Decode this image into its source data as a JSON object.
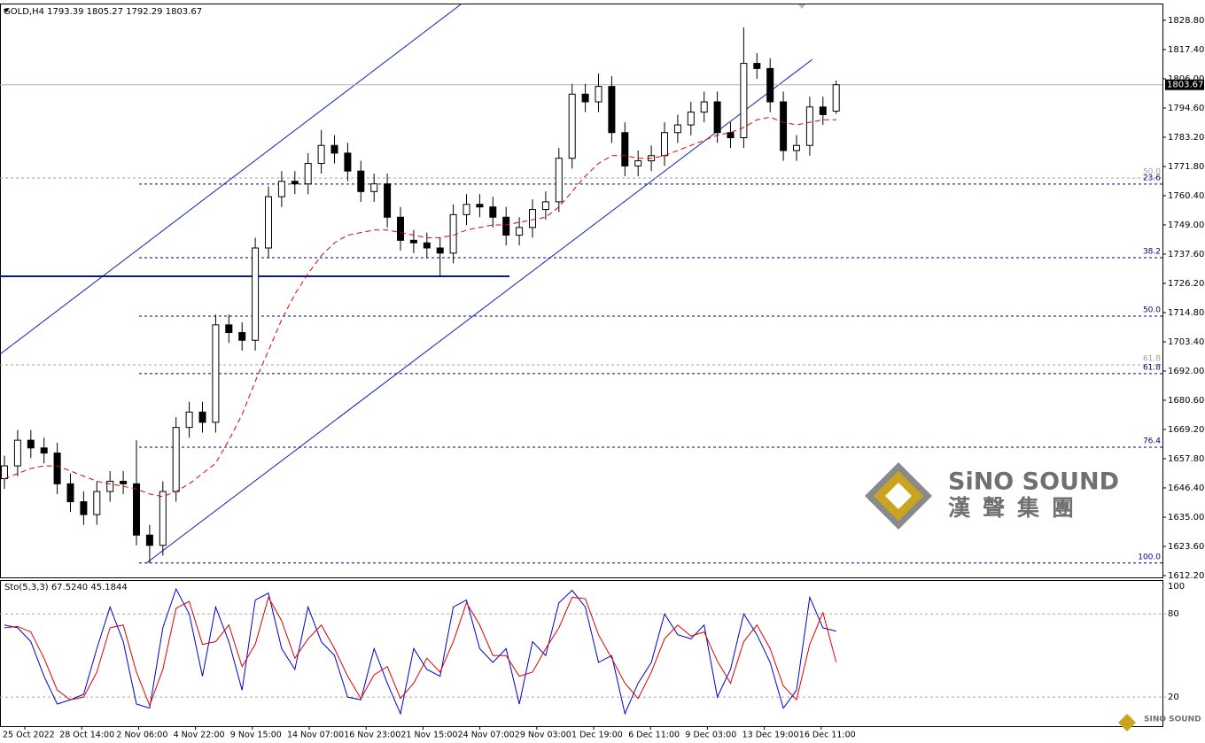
{
  "chart_data": {
    "type": "candlestick",
    "header": "GOLD,H4  1793.39 1805.27 1792.29 1803.67",
    "x_labels": [
      "25 Oct 2022",
      "28 Oct 14:00",
      "2 Nov 06:00",
      "4 Nov 22:00",
      "9 Nov 15:00",
      "14 Nov 07:00",
      "16 Nov 23:00",
      "21 Nov 15:00",
      "24 Nov 07:00",
      "29 Nov 03:00",
      "1 Dec 19:00",
      "6 Dec 11:00",
      "9 Dec 03:00",
      "13 Dec 19:00",
      "16 Dec 11:00"
    ],
    "open": [
      1650,
      1655,
      1665,
      1662,
      1660,
      1648,
      1641,
      1636,
      1645,
      1649,
      1648,
      1628,
      1624,
      1645,
      1670,
      1676,
      1672,
      1710,
      1707,
      1704,
      1740,
      1760,
      1766,
      1765,
      1773,
      1780,
      1777,
      1770,
      1762,
      1765,
      1752,
      1743,
      1742,
      1740,
      1738,
      1753,
      1757,
      1756,
      1752,
      1745,
      1748,
      1755,
      1758,
      1775,
      1800,
      1797,
      1803,
      1785,
      1772,
      1774,
      1776,
      1785,
      1788,
      1793,
      1797,
      1785,
      1783,
      1812,
      1810,
      1797,
      1778,
      1780,
      1795,
      1793.39
    ],
    "high": [
      1659,
      1669,
      1669,
      1666,
      1664,
      1652,
      1645,
      1649,
      1653,
      1653,
      1665,
      1632,
      1649,
      1674,
      1680,
      1680,
      1714,
      1714,
      1711,
      1744,
      1764,
      1770,
      1770,
      1777,
      1786,
      1784,
      1781,
      1774,
      1769,
      1769,
      1756,
      1747,
      1746,
      1744,
      1757,
      1761,
      1761,
      1760,
      1756,
      1752,
      1759,
      1762,
      1779,
      1804,
      1804,
      1808,
      1807,
      1789,
      1778,
      1780,
      1789,
      1792,
      1797,
      1801,
      1801,
      1789,
      1826,
      1816,
      1814,
      1801,
      1784,
      1799,
      1799,
      1805.27
    ],
    "low": [
      1646,
      1651,
      1658,
      1656,
      1644,
      1637,
      1632,
      1632,
      1641,
      1644,
      1624,
      1617,
      1620,
      1641,
      1666,
      1668,
      1668,
      1703,
      1700,
      1700,
      1736,
      1756,
      1761,
      1761,
      1769,
      1773,
      1766,
      1758,
      1758,
      1748,
      1739,
      1738,
      1736,
      1729,
      1734,
      1749,
      1752,
      1748,
      1741,
      1741,
      1744,
      1751,
      1754,
      1771,
      1793,
      1793,
      1781,
      1768,
      1768,
      1770,
      1772,
      1781,
      1784,
      1789,
      1781,
      1779,
      1779,
      1806,
      1793,
      1774,
      1774,
      1776,
      1788,
      1792.29
    ],
    "close": [
      1655,
      1665,
      1662,
      1660,
      1648,
      1641,
      1636,
      1645,
      1649,
      1648,
      1628,
      1624,
      1645,
      1670,
      1676,
      1672,
      1710,
      1707,
      1704,
      1740,
      1760,
      1766,
      1765,
      1773,
      1780,
      1777,
      1770,
      1762,
      1765,
      1752,
      1743,
      1742,
      1740,
      1738,
      1753,
      1757,
      1756,
      1752,
      1745,
      1748,
      1755,
      1758,
      1775,
      1800,
      1797,
      1803,
      1785,
      1772,
      1774,
      1776,
      1785,
      1788,
      1793,
      1797,
      1785,
      1783,
      1812,
      1810,
      1797,
      1778,
      1780,
      1795,
      1792,
      1803.67
    ],
    "ma": {
      "color": "#e00000",
      "values": [
        1650,
        1652,
        1654,
        1655,
        1655,
        1653,
        1651,
        1649,
        1648,
        1647,
        1646,
        1644,
        1643,
        1645,
        1648,
        1652,
        1656,
        1665,
        1675,
        1688,
        1700,
        1712,
        1722,
        1730,
        1737,
        1742,
        1745,
        1746,
        1747,
        1747,
        1746,
        1745,
        1744,
        1744,
        1745,
        1747,
        1748,
        1749,
        1749,
        1750,
        1751,
        1752,
        1756,
        1762,
        1768,
        1773,
        1776,
        1776,
        1775,
        1775,
        1776,
        1778,
        1780,
        1782,
        1784,
        1785,
        1787,
        1790,
        1791,
        1789,
        1788,
        1789,
        1790,
        1790
      ]
    },
    "ylim": [
      1611.5,
      1835.0
    ],
    "yticks": [
      {
        "value": 1828.8,
        "label": "1828.80"
      },
      {
        "value": 1817.4,
        "label": "1817.40"
      },
      {
        "value": 1806,
        "label": "1806.00"
      },
      {
        "value": 1794.6,
        "label": "1794.60"
      },
      {
        "value": 1783.2,
        "label": "1783.20"
      },
      {
        "value": 1771.8,
        "label": "1771.80"
      },
      {
        "value": 1760.4,
        "label": "1760.40"
      },
      {
        "value": 1749,
        "label": "1749.00"
      },
      {
        "value": 1737.6,
        "label": "1737.60"
      },
      {
        "value": 1726.2,
        "label": "1726.20"
      },
      {
        "value": 1714.8,
        "label": "1714.80"
      },
      {
        "value": 1703.4,
        "label": "1703.40"
      },
      {
        "value": 1692,
        "label": "1692.00"
      },
      {
        "value": 1680.6,
        "label": "1680.60"
      },
      {
        "value": 1669.2,
        "label": "1669.20"
      },
      {
        "value": 1657.8,
        "label": "1657.80"
      },
      {
        "value": 1646.4,
        "label": "1646.40"
      },
      {
        "value": 1635,
        "label": "1635.00"
      },
      {
        "value": 1623.6,
        "label": "1623.60"
      },
      {
        "value": 1612.2,
        "label": "1612.20"
      }
    ],
    "current_price": 1803.67,
    "levels": [
      {
        "label": "50.0",
        "price": 1767.3,
        "color": "#a0a0a0"
      },
      {
        "label": "23.6",
        "price": 1764.9,
        "color": "#000080"
      },
      {
        "label": "38.2",
        "price": 1736.2,
        "color": "#000080"
      },
      {
        "label": "50.0",
        "price": 1713.4,
        "color": "#000080"
      },
      {
        "label": "61.8",
        "price": 1694.4,
        "color": "#a0a0a0"
      },
      {
        "label": "61.8",
        "price": 1691.0,
        "color": "#000080"
      },
      {
        "label": "76.4",
        "price": 1662.3,
        "color": "#000080"
      },
      {
        "label": "100.0",
        "price": 1617.1,
        "color": "#000080"
      }
    ],
    "stochastic": {
      "label": "Sto(5,3,3) 67.5240 45.1844",
      "ylim": [
        -1,
        103.8
      ],
      "yticks": [
        20,
        80,
        100
      ],
      "series": [
        {
          "color": "#0000cc",
          "values": [
            72,
            70,
            60,
            35,
            15,
            18,
            22,
            55,
            85,
            60,
            15,
            12,
            70,
            98,
            80,
            35,
            85,
            60,
            25,
            90,
            95,
            55,
            40,
            85,
            60,
            50,
            20,
            18,
            55,
            30,
            8,
            55,
            40,
            35,
            85,
            90,
            55,
            45,
            55,
            15,
            60,
            50,
            88,
            97,
            85,
            45,
            50,
            8,
            30,
            45,
            80,
            65,
            62,
            72,
            20,
            40,
            80,
            65,
            45,
            12,
            25,
            92,
            70,
            67.524
          ]
        },
        {
          "color": "#e00000",
          "values": [
            70,
            71,
            67,
            48,
            25,
            18,
            20,
            38,
            70,
            72,
            38,
            14,
            40,
            84,
            89,
            58,
            60,
            72,
            42,
            58,
            92,
            75,
            48,
            62,
            72,
            55,
            35,
            19,
            36,
            42,
            19,
            30,
            48,
            38,
            60,
            88,
            72,
            50,
            50,
            35,
            38,
            55,
            70,
            92,
            91,
            65,
            48,
            30,
            19,
            38,
            62,
            72,
            64,
            67,
            46,
            30,
            60,
            72,
            55,
            28,
            18,
            58,
            81,
            45.1844
          ]
        }
      ]
    }
  },
  "logo": {
    "name": "SiNO SOUND",
    "chinese": "漢聲集團",
    "small": "SINO SOUND"
  }
}
